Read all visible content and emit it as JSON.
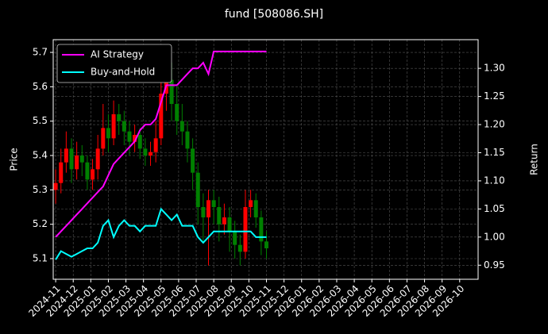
{
  "chart_data": {
    "type": "candlestick",
    "title": "fund [508086.SH]",
    "ylabel": "Price",
    "y2label": "Return",
    "x": [
      0,
      0.3,
      0.6,
      0.9,
      1.2,
      1.5,
      1.8,
      2.1,
      2.4,
      2.7,
      3,
      3.3,
      3.6,
      3.9,
      4.2,
      4.5,
      4.8,
      5.1,
      5.4,
      5.7,
      6,
      6.3,
      6.6,
      6.9,
      7.2,
      7.5,
      7.8,
      8.1,
      8.4,
      8.7,
      9,
      9.3,
      9.6,
      9.9,
      10.2,
      10.5,
      10.8,
      11.1,
      11.4,
      11.7,
      12
    ],
    "open": [
      5.3,
      5.32,
      5.38,
      5.42,
      5.36,
      5.4,
      5.38,
      5.33,
      5.36,
      5.42,
      5.48,
      5.45,
      5.52,
      5.5,
      5.47,
      5.44,
      5.46,
      5.42,
      5.4,
      5.41,
      5.45,
      5.58,
      5.62,
      5.55,
      5.5,
      5.47,
      5.42,
      5.35,
      5.25,
      5.22,
      5.27,
      5.25,
      5.2,
      5.22,
      5.18,
      5.14,
      5.12,
      5.25,
      5.27,
      5.22,
      5.15
    ],
    "high": [
      5.36,
      5.42,
      5.47,
      5.45,
      5.44,
      5.43,
      5.4,
      5.39,
      5.46,
      5.55,
      5.52,
      5.56,
      5.55,
      5.53,
      5.5,
      5.49,
      5.48,
      5.45,
      5.44,
      5.5,
      5.65,
      5.7,
      5.67,
      5.6,
      5.55,
      5.5,
      5.45,
      5.38,
      5.29,
      5.3,
      5.3,
      5.28,
      5.26,
      5.25,
      5.21,
      5.17,
      5.3,
      5.3,
      5.29,
      5.24,
      5.18
    ],
    "low": [
      5.26,
      5.29,
      5.35,
      5.32,
      5.33,
      5.34,
      5.3,
      5.3,
      5.33,
      5.4,
      5.41,
      5.43,
      5.46,
      5.43,
      5.4,
      5.41,
      5.39,
      5.37,
      5.37,
      5.38,
      5.43,
      5.53,
      5.5,
      5.46,
      5.43,
      5.38,
      5.3,
      5.2,
      5.15,
      5.08,
      5.2,
      5.15,
      5.17,
      5.12,
      5.1,
      5.08,
      5.1,
      5.22,
      5.19,
      5.11,
      5.1
    ],
    "close": [
      5.32,
      5.38,
      5.42,
      5.36,
      5.4,
      5.38,
      5.33,
      5.36,
      5.42,
      5.48,
      5.45,
      5.52,
      5.5,
      5.47,
      5.44,
      5.46,
      5.42,
      5.4,
      5.41,
      5.45,
      5.58,
      5.62,
      5.55,
      5.5,
      5.47,
      5.42,
      5.35,
      5.25,
      5.22,
      5.27,
      5.25,
      5.2,
      5.22,
      5.18,
      5.14,
      5.12,
      5.25,
      5.27,
      5.22,
      5.15,
      5.13
    ],
    "up_color": "#ff0000",
    "down_color": "#008000",
    "series": [
      {
        "name": "AI Strategy",
        "color": "#ff00ff",
        "axis": "y2",
        "values": [
          1.0,
          1.01,
          1.02,
          1.03,
          1.04,
          1.05,
          1.06,
          1.07,
          1.08,
          1.09,
          1.11,
          1.13,
          1.14,
          1.15,
          1.16,
          1.17,
          1.19,
          1.2,
          1.2,
          1.21,
          1.24,
          1.27,
          1.27,
          1.27,
          1.28,
          1.29,
          1.3,
          1.3,
          1.31,
          1.29,
          1.33,
          1.33,
          1.33,
          1.33,
          1.33,
          1.33,
          1.33,
          1.33,
          1.33,
          1.33,
          1.33
        ]
      },
      {
        "name": "Buy-and-Hold",
        "color": "#00ffff",
        "axis": "y2",
        "values": [
          0.96,
          0.975,
          0.97,
          0.965,
          0.97,
          0.975,
          0.98,
          0.98,
          0.99,
          1.02,
          1.03,
          1.0,
          1.02,
          1.03,
          1.02,
          1.02,
          1.01,
          1.02,
          1.02,
          1.02,
          1.05,
          1.04,
          1.03,
          1.04,
          1.02,
          1.02,
          1.02,
          1.0,
          0.99,
          1.0,
          1.01,
          1.01,
          1.01,
          1.01,
          1.01,
          1.01,
          1.01,
          1.01,
          1.0,
          1.0,
          1.0
        ]
      }
    ],
    "xlim": [
      -0.14,
      24.05
    ],
    "xticks": [
      {
        "value": 0,
        "label": "2024-11"
      },
      {
        "value": 1,
        "label": "2024-12"
      },
      {
        "value": 2,
        "label": "2025-01"
      },
      {
        "value": 3,
        "label": "2025-02"
      },
      {
        "value": 4,
        "label": "2025-03"
      },
      {
        "value": 5,
        "label": "2025-04"
      },
      {
        "value": 6,
        "label": "2025-05"
      },
      {
        "value": 7,
        "label": "2025-06"
      },
      {
        "value": 8,
        "label": "2025-07"
      },
      {
        "value": 9,
        "label": "2025-08"
      },
      {
        "value": 10,
        "label": "2025-09"
      },
      {
        "value": 11,
        "label": "2025-10"
      },
      {
        "value": 12,
        "label": "2025-11"
      },
      {
        "value": 13,
        "label": "2025-12"
      },
      {
        "value": 14,
        "label": "2026-01"
      },
      {
        "value": 15,
        "label": "2026-02"
      },
      {
        "value": 16,
        "label": "2026-03"
      },
      {
        "value": 17,
        "label": "2026-04"
      },
      {
        "value": 18,
        "label": "2026-05"
      },
      {
        "value": 19,
        "label": "2026-06"
      },
      {
        "value": 20,
        "label": "2026-07"
      },
      {
        "value": 21,
        "label": "2026-08"
      },
      {
        "value": 22,
        "label": "2026-09"
      },
      {
        "value": 23,
        "label": "2026-10"
      }
    ],
    "ylim": [
      5.04,
      5.737
    ],
    "yticks": [
      5.1,
      5.2,
      5.3,
      5.4,
      5.5,
      5.6,
      5.7
    ],
    "y2lim": [
      0.925,
      1.351
    ],
    "y2ticks": [
      0.95,
      {
        "value": 1,
        "label": "1.00"
      },
      1.05,
      {
        "value": 1.1,
        "label": "1.10"
      },
      1.15,
      {
        "value": 1.2,
        "label": "1.20"
      },
      1.25,
      {
        "value": 1.3,
        "label": "1.30"
      }
    ],
    "grid": true,
    "legend": "upper left"
  }
}
